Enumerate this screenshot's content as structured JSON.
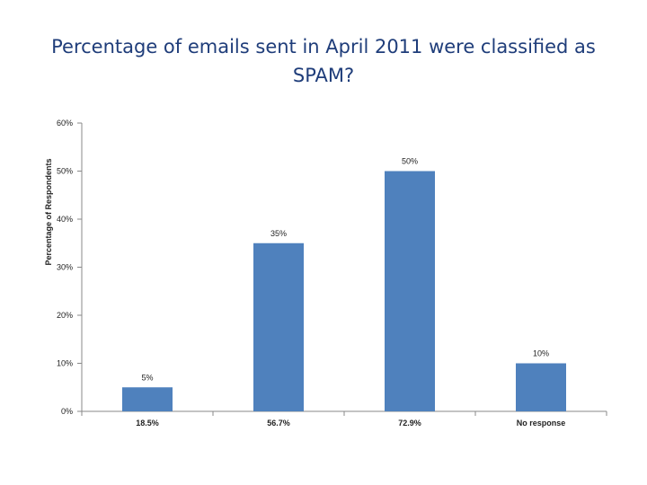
{
  "title": "Percentage of emails sent in April 2011 were classified as SPAM?",
  "chart_data": {
    "type": "bar",
    "title": "Percentage of emails sent in April 2011 were classified as SPAM?",
    "xlabel": "",
    "ylabel": "Percentage of Respondents",
    "categories": [
      "18.5%",
      "56.7%",
      "72.9%",
      "No response"
    ],
    "values": [
      5,
      35,
      50,
      10
    ],
    "data_labels": [
      "5%",
      "35%",
      "50%",
      "10%"
    ],
    "ylim": [
      0,
      60
    ],
    "yticks": [
      0,
      10,
      20,
      30,
      40,
      50,
      60
    ],
    "ytick_labels": [
      "0%",
      "10%",
      "20%",
      "30%",
      "40%",
      "50%",
      "60%"
    ],
    "grid": false,
    "bar_color": "#4f81bd"
  }
}
